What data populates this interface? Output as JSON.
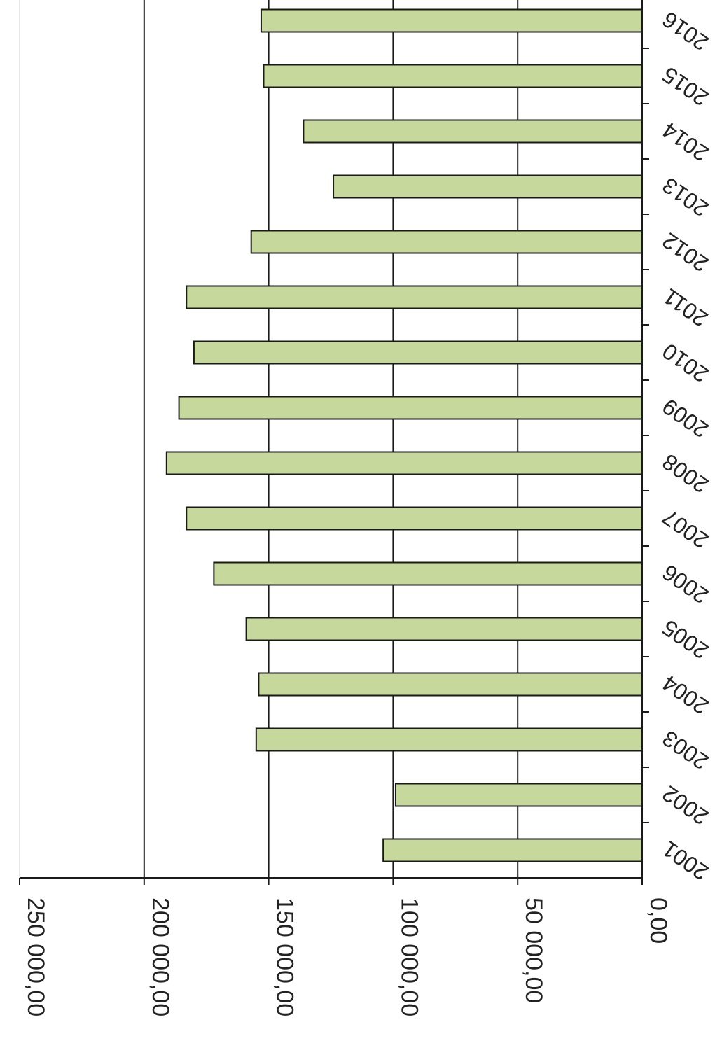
{
  "chart_data": {
    "type": "bar",
    "orientation": "rotated-180-horizontal",
    "title": "",
    "xlabel": "",
    "ylabel": "",
    "categories": [
      "2001",
      "2002",
      "2003",
      "2004",
      "2005",
      "2006",
      "2007",
      "2008",
      "2009",
      "2010",
      "2011",
      "2012",
      "2013",
      "2014",
      "2015",
      "2016"
    ],
    "series": [
      {
        "values": [
          104000,
          99000,
          155000,
          154000,
          159000,
          172000,
          183000,
          191000,
          186000,
          180000,
          183000,
          157000,
          124000,
          136000,
          152000,
          153000
        ],
        "color": "#c6d89b"
      }
    ],
    "ylim": [
      0,
      250000
    ],
    "ticks": [
      0,
      50000,
      100000,
      150000,
      200000,
      250000
    ],
    "tick_labels": [
      "0,00",
      "50 000,00",
      "100 000,00",
      "150 000,00",
      "200 000,00",
      "250 000,00"
    ],
    "grid": true,
    "legend": "none",
    "bar_color": "#c6d89b",
    "edge_color": "#1a1a1a"
  }
}
